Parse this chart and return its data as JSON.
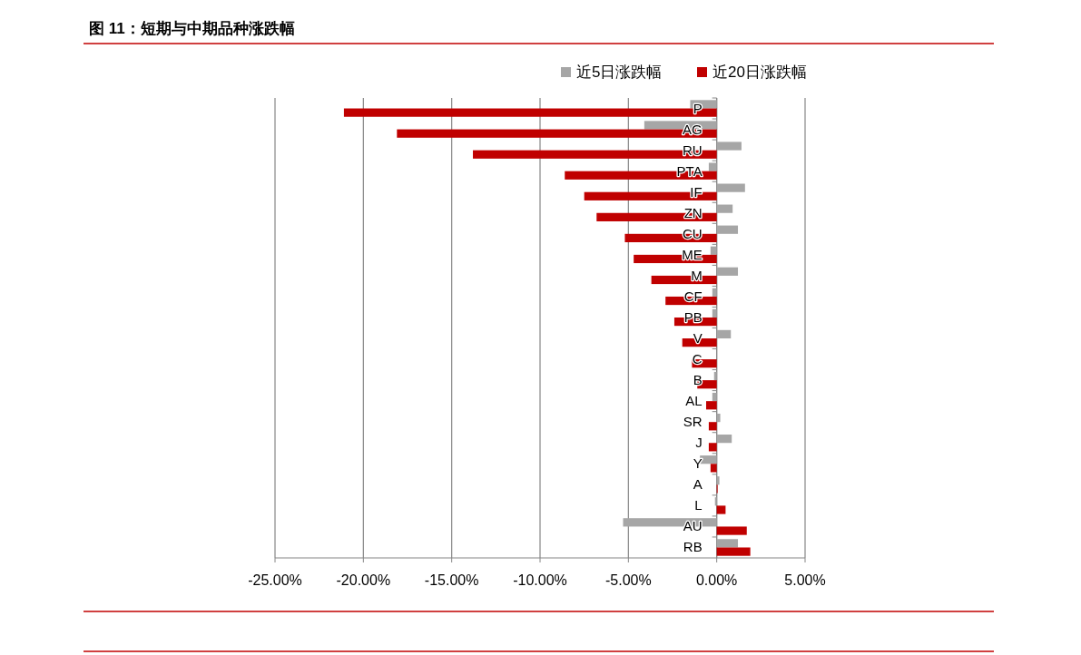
{
  "chart_data": {
    "type": "bar",
    "orientation": "horizontal",
    "title": "图 11：短期与中期品种涨跌幅",
    "categories": [
      "P",
      "AG",
      "RU",
      "PTA",
      "IF",
      "ZN",
      "CU",
      "ME",
      "M",
      "CF",
      "PB",
      "V",
      "C",
      "B",
      "AL",
      "SR",
      "J",
      "Y",
      "A",
      "L",
      "AU",
      "RB"
    ],
    "series": [
      {
        "name": "近5日涨跌幅",
        "color": "#a6a6a6",
        "values": [
          -1.5,
          -4.1,
          1.4,
          -0.45,
          1.6,
          0.9,
          1.2,
          -0.35,
          1.2,
          -0.25,
          -0.25,
          0.8,
          0,
          -0.15,
          -0.25,
          0.2,
          0.85,
          -0.95,
          0.15,
          -0.1,
          -5.3,
          1.2
        ]
      },
      {
        "name": "近20日涨跌幅",
        "color": "#c00000",
        "values": [
          -21.1,
          -18.1,
          -13.8,
          -8.6,
          -7.5,
          -6.8,
          -5.2,
          -4.7,
          -3.7,
          -2.9,
          -2.4,
          -1.95,
          -1.4,
          -1.1,
          -0.6,
          -0.45,
          -0.45,
          -0.35,
          0.05,
          0.5,
          1.7,
          1.9
        ]
      }
    ],
    "xlim": [
      -25,
      5
    ],
    "xticks": [
      {
        "value": -25,
        "label": "-25.00%"
      },
      {
        "value": -20,
        "label": "-20.00%"
      },
      {
        "value": -15,
        "label": "-15.00%"
      },
      {
        "value": -10,
        "label": "-10.00%"
      },
      {
        "value": -5,
        "label": "-5.00%"
      },
      {
        "value": 0,
        "label": "0.00%"
      },
      {
        "value": 5,
        "label": "5.00%"
      }
    ],
    "grid": "x",
    "legend": "top"
  }
}
